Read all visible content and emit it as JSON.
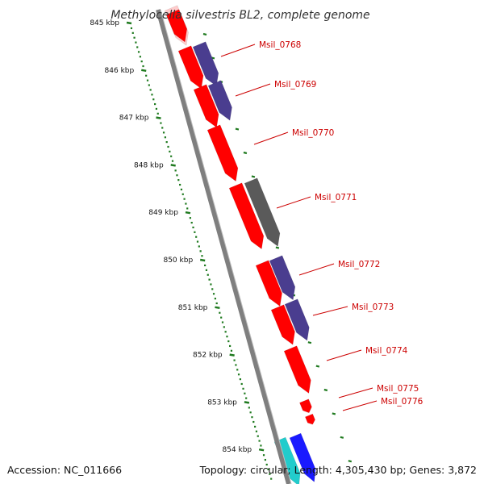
{
  "title": "Methylocella silvestris BL2, complete genome",
  "footer": {
    "accession": "Accession: NC_011666",
    "topology": "Topology: circular; Length: 4,305,430 bp; Genes: 3,872"
  },
  "colors": {
    "backbone": "#7f7f7f",
    "tick": "#1f7a1f",
    "label": "#cc0000",
    "gene_red": "#ff0000",
    "gene_blue": "#4a3d8f",
    "gene_gray": "#5a5a5a",
    "gene_cyan": "#22cccc",
    "gene_darkblue": "#1a1aff"
  },
  "ticks": [
    {
      "label": "845 kbp"
    },
    {
      "label": "846 kbp"
    },
    {
      "label": "847 kbp"
    },
    {
      "label": "848 kbp"
    },
    {
      "label": "849 kbp"
    },
    {
      "label": "850 kbp"
    },
    {
      "label": "851 kbp"
    },
    {
      "label": "852 kbp"
    },
    {
      "label": "853 kbp"
    },
    {
      "label": "854 kbp"
    }
  ],
  "genes": [
    {
      "label": "Msil_0768"
    },
    {
      "label": "Msil_0769"
    },
    {
      "label": "Msil_0770"
    },
    {
      "label": "Msil_0771"
    },
    {
      "label": "Msil_0772"
    },
    {
      "label": "Msil_0773"
    },
    {
      "label": "Msil_0774"
    },
    {
      "label": "Msil_0775"
    },
    {
      "label": "Msil_0776"
    }
  ]
}
